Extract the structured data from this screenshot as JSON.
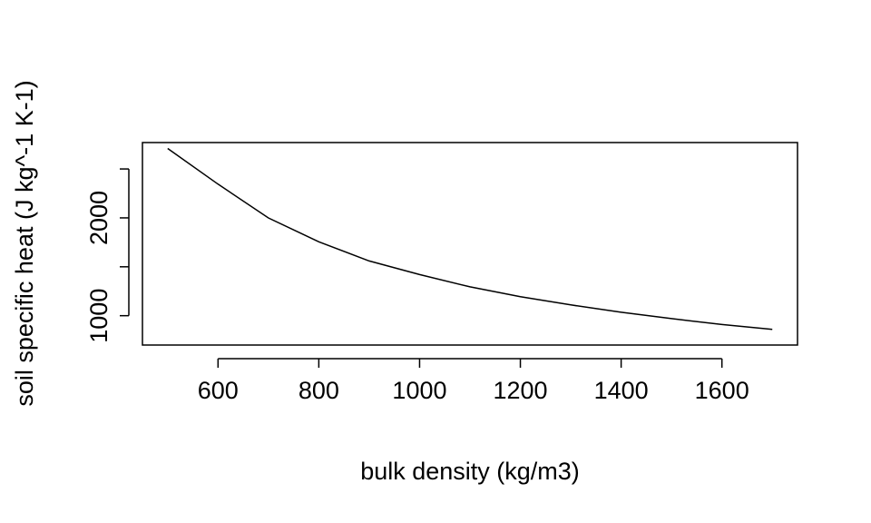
{
  "chart_data": {
    "type": "line",
    "title": "",
    "xlabel": "bulk density (kg/m3)",
    "ylabel": "soil specific heat (J kg^-1 K-1)",
    "xlim": [
      450,
      1750
    ],
    "ylim": [
      700,
      2770
    ],
    "x_ticks": [
      {
        "value": 600,
        "label": "600"
      },
      {
        "value": 800,
        "label": "800"
      },
      {
        "value": 1000,
        "label": "1000"
      },
      {
        "value": 1200,
        "label": "1200"
      },
      {
        "value": 1400,
        "label": "1400"
      },
      {
        "value": 1600,
        "label": "1600"
      }
    ],
    "y_ticks": [
      {
        "value": 1000,
        "label": "1000"
      },
      {
        "value": 1500,
        "label": ""
      },
      {
        "value": 2000,
        "label": "2000"
      },
      {
        "value": 2500,
        "label": ""
      }
    ],
    "grid": false,
    "line_color": "#000000",
    "series": [
      {
        "x": [
          500,
          600,
          700,
          800,
          900,
          1000,
          1100,
          1200,
          1300,
          1400,
          1500,
          1600,
          1700
        ],
        "y": [
          2710,
          2345,
          2000,
          1755,
          1560,
          1420,
          1295,
          1195,
          1110,
          1035,
          970,
          910,
          860
        ]
      }
    ]
  }
}
